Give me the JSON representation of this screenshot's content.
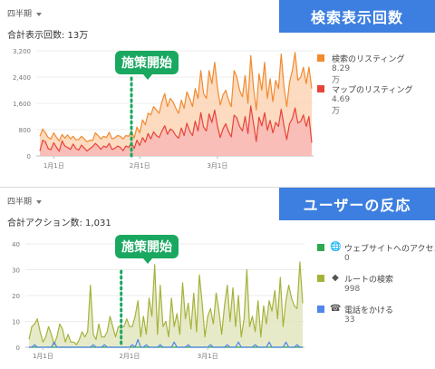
{
  "panels": [
    {
      "period_label": "四半期",
      "total_label": "合計表示回数: 13万",
      "banner": "検索表示回数",
      "callout": "施策開始",
      "legend": [
        {
          "name": "検索のリスティング",
          "value": "8.29万",
          "color": "#f28a2e",
          "icon": ""
        },
        {
          "name": "マップのリスティング",
          "value": "4.69万",
          "color": "#e8433a",
          "icon": ""
        }
      ]
    },
    {
      "period_label": "四半期",
      "total_label": "合計アクション数: 1,031",
      "banner": "ユーザーの反応",
      "callout": "施策開始",
      "legend": [
        {
          "name": "ウェブサイトへのアクセス",
          "value": "0",
          "color": "#2fa84f",
          "icon": "globe-icon"
        },
        {
          "name": "ルートの検索",
          "value": "998",
          "color": "#a6b23a",
          "icon": "directions-icon"
        },
        {
          "name": "電話をかける",
          "value": "33",
          "color": "#4f86ec",
          "icon": "phone-icon"
        }
      ]
    }
  ],
  "chart_data": [
    {
      "type": "area",
      "title": "",
      "x_ticks": [
        "1月1日",
        "2月1日",
        "3月1日"
      ],
      "x_tick_index": [
        5,
        36,
        64
      ],
      "start_marker_index": 33,
      "ylim": [
        0,
        3200
      ],
      "y_ticks": [
        0,
        800,
        1600,
        2400,
        3200
      ],
      "y_tick_labels": [
        "0",
        "800",
        "1,600",
        "2,400",
        "3,200"
      ],
      "grid": true,
      "series": [
        {
          "name": "検索のリスティング",
          "color": "#f28a2e",
          "fill": "#fbd5b5",
          "values": [
            600,
            820,
            700,
            560,
            520,
            700,
            560,
            460,
            650,
            540,
            640,
            520,
            600,
            490,
            500,
            600,
            520,
            430,
            480,
            470,
            700,
            620,
            520,
            600,
            560,
            720,
            520,
            550,
            620,
            600,
            520,
            620,
            600,
            760,
            550,
            880,
            700,
            1100,
            950,
            1300,
            1250,
            1500,
            1400,
            1300,
            1650,
            1900,
            1500,
            1750,
            1650,
            1450,
            1300,
            1700,
            1450,
            1950,
            1750,
            1500,
            2050,
            1750,
            2600,
            1900,
            1750,
            2600,
            2200,
            2850,
            2100,
            1550,
            1850,
            2000,
            1700,
            1500,
            2600,
            2400,
            2000,
            1800,
            2450,
            1600,
            3050,
            2100,
            1400,
            2500,
            2000,
            2850,
            1750,
            2350,
            1650,
            2300,
            2050,
            3100,
            2100,
            1500,
            2250,
            2600,
            3150,
            2300,
            2400,
            2700,
            2200,
            2700,
            2050
          ]
        },
        {
          "name": "マップのリスティング",
          "color": "#e8433a",
          "fill": "#f7b9b5",
          "values": [
            150,
            480,
            430,
            220,
            190,
            400,
            260,
            140,
            460,
            300,
            260,
            200,
            360,
            220,
            180,
            330,
            240,
            150,
            220,
            280,
            380,
            300,
            200,
            300,
            260,
            380,
            200,
            230,
            300,
            260,
            160,
            300,
            260,
            400,
            230,
            480,
            320,
            560,
            420,
            680,
            520,
            730,
            620,
            560,
            760,
            920,
            660,
            820,
            760,
            620,
            540,
            850,
            620,
            1000,
            760,
            620,
            1060,
            760,
            1320,
            880,
            760,
            1280,
            1020,
            1400,
            920,
            560,
            820,
            980,
            740,
            580,
            1240,
            1160,
            900,
            760,
            1200,
            680,
            1520,
            1000,
            440,
            1180,
            920,
            1320,
            780,
            1080,
            700,
            1020,
            900,
            1420,
            920,
            500,
            980,
            1140,
            1460,
            1000,
            1050,
            1250,
            900,
            1200,
            400
          ]
        }
      ]
    },
    {
      "type": "area",
      "title": "",
      "x_ticks": [
        "1月1日",
        "2月1日",
        "3月1日"
      ],
      "x_tick_index": [
        5,
        36,
        64
      ],
      "start_marker_index": 33,
      "ylim": [
        0,
        40
      ],
      "y_ticks": [
        0,
        10,
        20,
        30,
        40
      ],
      "y_tick_labels": [
        "0",
        "10",
        "20",
        "30",
        "40"
      ],
      "grid": true,
      "series": [
        {
          "name": "ウェブサイトへのアクセス",
          "color": "#2fa84f",
          "fill": "none",
          "values": [
            0,
            0,
            0,
            0,
            0,
            0,
            0,
            0,
            0,
            0,
            0,
            0,
            0,
            0,
            0,
            0,
            0,
            0,
            0,
            0,
            0,
            0,
            0,
            0,
            0,
            0,
            0,
            0,
            0,
            0,
            0,
            0,
            0,
            0,
            0,
            0,
            0,
            0,
            0,
            0,
            0,
            0,
            0,
            0,
            0,
            0,
            0,
            0,
            0,
            0,
            0,
            0,
            0,
            0,
            0,
            0,
            0,
            0,
            0,
            0,
            0,
            0,
            0,
            0,
            0,
            0,
            0,
            0,
            0,
            0,
            0,
            0,
            0,
            0,
            0,
            0,
            0,
            0,
            0,
            0,
            0,
            0,
            0,
            0,
            0,
            0,
            0,
            0,
            0,
            0,
            0,
            0,
            0,
            0,
            0,
            0,
            0,
            0,
            0
          ]
        },
        {
          "name": "ルートの検索",
          "color": "#a6b23a",
          "fill": "#e3e6bf",
          "values": [
            3,
            8,
            9,
            11,
            6,
            2,
            4,
            8,
            5,
            1,
            4,
            9,
            7,
            2,
            5,
            2,
            2,
            1,
            3,
            6,
            4,
            6,
            24,
            5,
            3,
            9,
            4,
            4,
            6,
            12,
            8,
            4,
            8,
            8,
            8,
            11,
            8,
            8,
            12,
            18,
            4,
            12,
            5,
            19,
            12,
            32,
            5,
            24,
            8,
            10,
            4,
            19,
            8,
            13,
            5,
            25,
            11,
            17,
            7,
            21,
            6,
            28,
            17,
            4,
            12,
            15,
            9,
            21,
            14,
            5,
            16,
            24,
            10,
            23,
            8,
            20,
            4,
            11,
            30,
            8,
            12,
            6,
            18,
            4,
            16,
            9,
            18,
            14,
            22,
            11,
            27,
            8,
            18,
            24,
            19,
            16,
            15,
            33,
            17
          ]
        },
        {
          "name": "電話をかける",
          "color": "#4f86ec",
          "fill": "none",
          "values": [
            0,
            0,
            1,
            0,
            0,
            0,
            0,
            0,
            0,
            2,
            0,
            0,
            0,
            0,
            0,
            0,
            0,
            0,
            0,
            0,
            0,
            0,
            0,
            1,
            0,
            0,
            0,
            1,
            0,
            0,
            0,
            0,
            0,
            0,
            0,
            0,
            0,
            1,
            0,
            3,
            0,
            0,
            1,
            0,
            0,
            0,
            0,
            1,
            0,
            0,
            0,
            0,
            2,
            0,
            0,
            0,
            0,
            1,
            0,
            0,
            0,
            0,
            0,
            0,
            0,
            1,
            0,
            0,
            0,
            0,
            0,
            1,
            0,
            0,
            0,
            2,
            0,
            0,
            0,
            0,
            0,
            1,
            0,
            0,
            0,
            0,
            2,
            0,
            0,
            0,
            0,
            0,
            2,
            0,
            0,
            0,
            1,
            0,
            0
          ]
        }
      ]
    }
  ]
}
